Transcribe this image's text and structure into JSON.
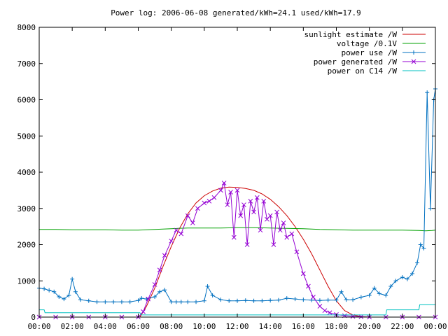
{
  "chart_data": {
    "type": "line",
    "title": "Power log: 2006-06-08 generated/kWh=24.1 used/kWh=17.9",
    "xlabel": "",
    "ylabel": "",
    "xlim": [
      0,
      24
    ],
    "ylim": [
      0,
      8000
    ],
    "x_ticks": [
      "00:00",
      "02:00",
      "04:00",
      "06:00",
      "08:00",
      "10:00",
      "12:00",
      "14:00",
      "16:00",
      "18:00",
      "20:00",
      "22:00",
      "00:00"
    ],
    "y_ticks": [
      "0",
      "1000",
      "2000",
      "3000",
      "4000",
      "5000",
      "6000",
      "7000",
      "8000"
    ],
    "grid": false,
    "legend_position": "top-right",
    "series": [
      {
        "name": "sunlight estimate /W",
        "color": "#cc0000",
        "marker": "none",
        "x": [
          6.1,
          6.5,
          7,
          7.5,
          8,
          8.5,
          9,
          9.5,
          10,
          10.5,
          11,
          11.5,
          12,
          12.5,
          13,
          13.5,
          14,
          14.5,
          15,
          15.5,
          16,
          16.5,
          17,
          17.5,
          18,
          18.5,
          19,
          19.5,
          20
        ],
        "y": [
          0,
          300,
          800,
          1400,
          1950,
          2450,
          2850,
          3150,
          3350,
          3480,
          3560,
          3590,
          3580,
          3550,
          3500,
          3400,
          3250,
          3050,
          2800,
          2500,
          2150,
          1750,
          1300,
          850,
          450,
          180,
          60,
          15,
          0
        ]
      },
      {
        "name": "voltage /0.1V",
        "color": "#00a000",
        "marker": "none",
        "x": [
          0,
          1,
          2,
          3,
          4,
          5,
          6,
          7,
          8,
          9,
          10,
          11,
          12,
          13,
          14,
          15,
          16,
          17,
          18,
          19,
          20,
          21,
          22,
          23,
          23.4,
          23.8,
          24
        ],
        "y": [
          2420,
          2420,
          2410,
          2410,
          2410,
          2400,
          2400,
          2420,
          2440,
          2460,
          2460,
          2460,
          2470,
          2470,
          2460,
          2450,
          2440,
          2420,
          2410,
          2400,
          2400,
          2400,
          2400,
          2390,
          2380,
          2390,
          2400
        ]
      },
      {
        "name": "power use /W",
        "color": "#0070c0",
        "marker": "+",
        "x": [
          0,
          0.3,
          0.6,
          0.9,
          1.2,
          1.5,
          1.8,
          2.0,
          2.2,
          2.5,
          3,
          3.5,
          4,
          4.5,
          5,
          5.5,
          6,
          6.2,
          6.5,
          7,
          7.3,
          7.6,
          8,
          8.3,
          8.6,
          9,
          9.5,
          10,
          10.2,
          10.5,
          11,
          11.5,
          12,
          12.5,
          13,
          13.5,
          14,
          14.5,
          15,
          15.5,
          16,
          16.5,
          17,
          17.5,
          18,
          18.3,
          18.6,
          19,
          19.5,
          20,
          20.3,
          20.6,
          21,
          21.3,
          21.6,
          22,
          22.3,
          22.6,
          22.9,
          23.1,
          23.3,
          23.5,
          23.7,
          23.9,
          24
        ],
        "y": [
          800,
          780,
          740,
          700,
          560,
          500,
          600,
          1050,
          700,
          480,
          450,
          420,
          420,
          420,
          420,
          420,
          460,
          520,
          500,
          560,
          700,
          750,
          420,
          420,
          420,
          420,
          420,
          450,
          850,
          600,
          480,
          450,
          450,
          460,
          450,
          450,
          460,
          470,
          520,
          500,
          480,
          470,
          460,
          470,
          470,
          700,
          480,
          480,
          550,
          600,
          800,
          650,
          600,
          850,
          1000,
          1100,
          1050,
          1200,
          1500,
          2000,
          1900,
          6200,
          3000,
          6000,
          6300
        ]
      },
      {
        "name": "power generated /W",
        "color": "#9400d3",
        "marker": "x",
        "x": [
          0,
          1,
          2,
          3,
          4,
          5,
          6,
          6.3,
          6.6,
          7,
          7.3,
          7.6,
          8,
          8.3,
          8.6,
          9,
          9.3,
          9.6,
          10,
          10.3,
          10.6,
          11,
          11.2,
          11.4,
          11.6,
          11.8,
          12,
          12.2,
          12.4,
          12.6,
          12.8,
          13,
          13.2,
          13.4,
          13.6,
          13.8,
          14,
          14.2,
          14.4,
          14.6,
          14.8,
          15,
          15.3,
          15.6,
          16,
          16.3,
          16.6,
          17,
          17.3,
          17.6,
          18,
          18.5,
          19,
          19.5,
          20,
          21,
          22,
          23,
          24
        ],
        "y": [
          0,
          0,
          0,
          0,
          0,
          0,
          0,
          150,
          500,
          900,
          1300,
          1700,
          2100,
          2400,
          2300,
          2800,
          2600,
          3000,
          3150,
          3200,
          3300,
          3500,
          3700,
          3100,
          3450,
          2200,
          3500,
          2800,
          3100,
          2000,
          3200,
          2900,
          3300,
          2400,
          3200,
          2700,
          2800,
          2000,
          2900,
          2400,
          2600,
          2200,
          2300,
          1800,
          1200,
          850,
          550,
          300,
          180,
          120,
          70,
          40,
          20,
          10,
          0,
          0,
          0,
          0,
          0
        ]
      },
      {
        "name": "power on C14 /W",
        "color": "#00c0c0",
        "marker": "none",
        "x": [
          0,
          0.3,
          0.35,
          6.1,
          6.2,
          21,
          21.05,
          23,
          23.05,
          24
        ],
        "y": [
          200,
          200,
          120,
          120,
          60,
          60,
          200,
          200,
          340,
          340
        ]
      }
    ]
  }
}
